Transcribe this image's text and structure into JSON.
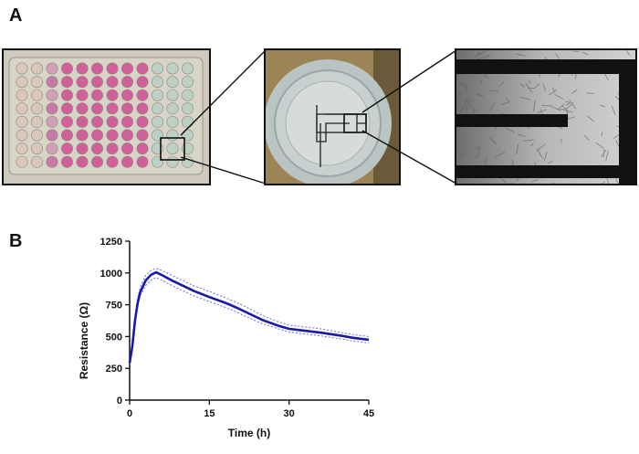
{
  "panels": {
    "a_label": "A",
    "b_label": "B"
  },
  "images": {
    "plate": "96-well-plate-photo",
    "well": "electrode-well-closeup-photo",
    "micro": "cell-micrograph-photo"
  },
  "colors": {
    "series": "#1a1aa6",
    "band": "#6a6ae0"
  },
  "chart_data": {
    "type": "line",
    "xlabel": "Time (h)",
    "ylabel": "Resistance  (Ω)",
    "xlim": [
      0,
      45
    ],
    "ylim": [
      0,
      1250
    ],
    "xticks": [
      0,
      15,
      30,
      45
    ],
    "yticks": [
      0,
      250,
      500,
      750,
      1000,
      1250
    ],
    "x": [
      0,
      0.5,
      1,
      1.5,
      2,
      3,
      4,
      5,
      6,
      8,
      10,
      12,
      15,
      18,
      20,
      22,
      25,
      28,
      30,
      33,
      36,
      40,
      42,
      45
    ],
    "y": [
      290,
      420,
      620,
      760,
      850,
      940,
      985,
      1005,
      985,
      940,
      900,
      860,
      810,
      765,
      730,
      690,
      630,
      585,
      560,
      545,
      530,
      505,
      490,
      475
    ],
    "lower": [
      285,
      400,
      590,
      730,
      820,
      900,
      945,
      965,
      945,
      900,
      860,
      820,
      775,
      730,
      695,
      655,
      600,
      560,
      535,
      520,
      505,
      480,
      465,
      450
    ],
    "upper": [
      295,
      440,
      650,
      800,
      890,
      980,
      1020,
      1035,
      1020,
      980,
      940,
      900,
      855,
      805,
      770,
      730,
      665,
      615,
      590,
      575,
      560,
      530,
      515,
      500
    ],
    "grid": false
  }
}
